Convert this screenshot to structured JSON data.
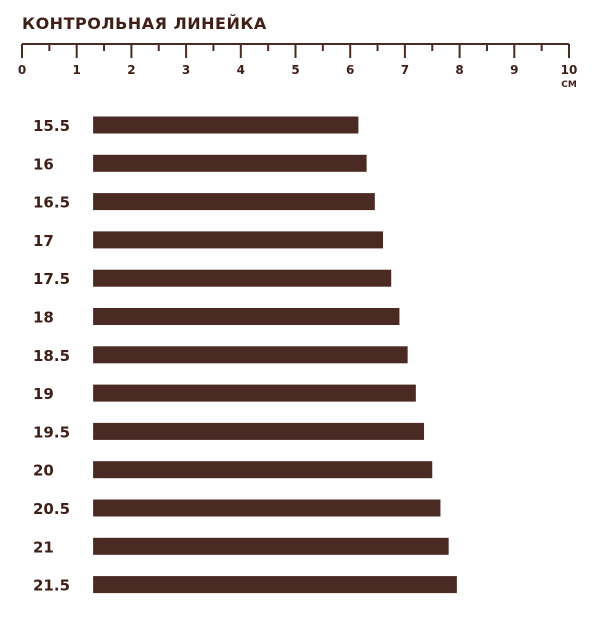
{
  "chart_data": {
    "type": "bar",
    "orientation": "horizontal",
    "title": "КОНТРОЛЬНАЯ ЛИНЕЙКА",
    "axis": {
      "min": 0,
      "max": 10,
      "ticks": [
        "0",
        "1",
        "2",
        "3",
        "4",
        "5",
        "6",
        "7",
        "8",
        "9",
        "10"
      ],
      "unit": "СМ",
      "minor_step": 0.5
    },
    "bar_start": 1.3,
    "categories": [
      "15.5",
      "16",
      "16.5",
      "17",
      "17.5",
      "18",
      "18.5",
      "19",
      "19.5",
      "20",
      "20.5",
      "21",
      "21.5"
    ],
    "values": [
      6.15,
      6.3,
      6.45,
      6.6,
      6.75,
      6.9,
      7.05,
      7.2,
      7.35,
      7.5,
      7.65,
      7.8,
      7.95
    ],
    "bar_color": "#4a2a22",
    "text_color": "#3f1f17"
  }
}
